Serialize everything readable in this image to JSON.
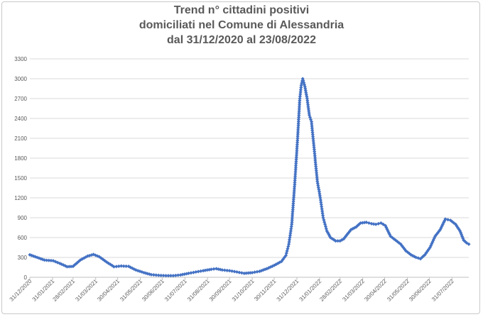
{
  "chart_data": {
    "type": "line",
    "title_lines": [
      "Trend n° cittadini positivi",
      "domiciliati nel Comune di Alessandria",
      "dal 31/12/2020 al 23/08/2022"
    ],
    "xlabel": "",
    "ylabel": "",
    "ylim": [
      0,
      3300
    ],
    "yticks": [
      0,
      300,
      600,
      900,
      1200,
      1500,
      1800,
      2100,
      2400,
      2700,
      3000,
      3300
    ],
    "x_range": [
      "2020-12-31",
      "2022-08-23"
    ],
    "xtick_labels": [
      "31/12/2020",
      "31/01/2021",
      "28/02/2021",
      "31/03/2021",
      "30/04/2021",
      "31/05/2021",
      "30/06/2021",
      "31/07/2021",
      "31/08/2021",
      "30/09/2021",
      "31/10/2021",
      "30/11/2021",
      "31/12/2021",
      "31/01/2022",
      "28/02/2022",
      "31/03/2022",
      "30/04/2022",
      "31/05/2022",
      "30/06/2022",
      "31/07/2022"
    ],
    "grid": true,
    "series_color": "#4472c4",
    "series": [
      {
        "points": [
          [
            "2020-12-31",
            340
          ],
          [
            "2021-01-10",
            300
          ],
          [
            "2021-01-20",
            260
          ],
          [
            "2021-02-01",
            250
          ],
          [
            "2021-02-10",
            210
          ],
          [
            "2021-02-20",
            160
          ],
          [
            "2021-02-28",
            165
          ],
          [
            "2021-03-10",
            260
          ],
          [
            "2021-03-20",
            320
          ],
          [
            "2021-03-28",
            345
          ],
          [
            "2021-04-05",
            310
          ],
          [
            "2021-04-15",
            230
          ],
          [
            "2021-04-25",
            160
          ],
          [
            "2021-05-05",
            170
          ],
          [
            "2021-05-15",
            165
          ],
          [
            "2021-05-25",
            110
          ],
          [
            "2021-06-05",
            70
          ],
          [
            "2021-06-15",
            40
          ],
          [
            "2021-06-25",
            30
          ],
          [
            "2021-07-05",
            25
          ],
          [
            "2021-07-15",
            25
          ],
          [
            "2021-07-25",
            35
          ],
          [
            "2021-08-05",
            60
          ],
          [
            "2021-08-15",
            80
          ],
          [
            "2021-08-25",
            100
          ],
          [
            "2021-09-05",
            120
          ],
          [
            "2021-09-12",
            130
          ],
          [
            "2021-09-20",
            110
          ],
          [
            "2021-09-30",
            100
          ],
          [
            "2021-10-10",
            80
          ],
          [
            "2021-10-20",
            60
          ],
          [
            "2021-10-31",
            70
          ],
          [
            "2021-11-10",
            90
          ],
          [
            "2021-11-20",
            130
          ],
          [
            "2021-11-30",
            180
          ],
          [
            "2021-12-10",
            240
          ],
          [
            "2021-12-16",
            330
          ],
          [
            "2021-12-20",
            500
          ],
          [
            "2021-12-24",
            800
          ],
          [
            "2021-12-28",
            1400
          ],
          [
            "2022-01-01",
            2100
          ],
          [
            "2022-01-04",
            2700
          ],
          [
            "2022-01-06",
            2900
          ],
          [
            "2022-01-08",
            3000
          ],
          [
            "2022-01-11",
            2880
          ],
          [
            "2022-01-14",
            2700
          ],
          [
            "2022-01-17",
            2450
          ],
          [
            "2022-01-20",
            2350
          ],
          [
            "2022-01-24",
            1900
          ],
          [
            "2022-01-28",
            1450
          ],
          [
            "2022-02-01",
            1200
          ],
          [
            "2022-02-05",
            900
          ],
          [
            "2022-02-10",
            700
          ],
          [
            "2022-02-15",
            600
          ],
          [
            "2022-02-22",
            550
          ],
          [
            "2022-02-28",
            550
          ],
          [
            "2022-03-05",
            580
          ],
          [
            "2022-03-10",
            650
          ],
          [
            "2022-03-15",
            720
          ],
          [
            "2022-03-22",
            760
          ],
          [
            "2022-03-28",
            820
          ],
          [
            "2022-04-05",
            830
          ],
          [
            "2022-04-12",
            810
          ],
          [
            "2022-04-18",
            800
          ],
          [
            "2022-04-25",
            820
          ],
          [
            "2022-05-01",
            780
          ],
          [
            "2022-05-08",
            620
          ],
          [
            "2022-05-15",
            560
          ],
          [
            "2022-05-22",
            500
          ],
          [
            "2022-05-29",
            400
          ],
          [
            "2022-06-05",
            340
          ],
          [
            "2022-06-12",
            300
          ],
          [
            "2022-06-18",
            280
          ],
          [
            "2022-06-24",
            340
          ],
          [
            "2022-07-01",
            450
          ],
          [
            "2022-07-08",
            620
          ],
          [
            "2022-07-15",
            720
          ],
          [
            "2022-07-22",
            880
          ],
          [
            "2022-07-29",
            860
          ],
          [
            "2022-08-05",
            800
          ],
          [
            "2022-08-11",
            700
          ],
          [
            "2022-08-16",
            560
          ],
          [
            "2022-08-20",
            520
          ],
          [
            "2022-08-23",
            500
          ]
        ]
      }
    ]
  }
}
